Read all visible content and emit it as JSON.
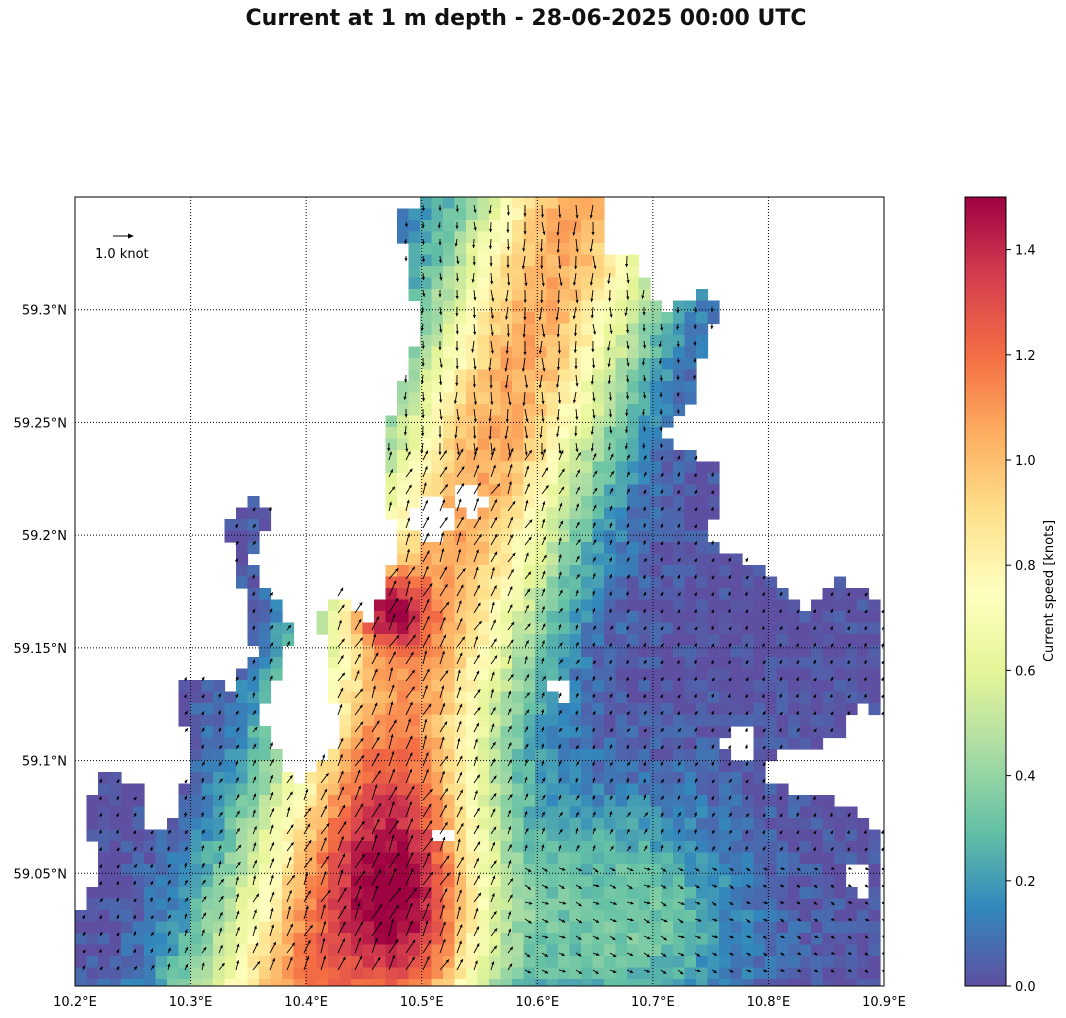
{
  "title": "Current at 1 m depth - 28-06-2025 00:00 UTC",
  "map": {
    "lon_range": [
      10.2,
      10.9
    ],
    "lat_range": [
      59.0,
      59.35
    ],
    "lon_ticks": [
      "10.2°E",
      "10.3°E",
      "10.4°E",
      "10.5°E",
      "10.6°E",
      "10.7°E",
      "10.8°E",
      "10.9°E"
    ],
    "lat_ticks": [
      "59.05°N",
      "59.1°N",
      "59.15°N",
      "59.2°N",
      "59.25°N",
      "59.3°N"
    ],
    "gridlines": "dotted",
    "reference_arrow_label": "1.0 knot"
  },
  "colorbar": {
    "label": "Current speed [knots]",
    "ticks": [
      "0.0",
      "0.2",
      "0.4",
      "0.6",
      "0.8",
      "1.0",
      "1.2",
      "1.4"
    ],
    "range": [
      0.0,
      1.5
    ],
    "colormap": [
      "#5e4fa2",
      "#3288bd",
      "#66c2a5",
      "#abdda4",
      "#e6f598",
      "#ffffbf",
      "#fee08b",
      "#fdae61",
      "#f46d43",
      "#d53e4f",
      "#9e0142"
    ]
  }
}
